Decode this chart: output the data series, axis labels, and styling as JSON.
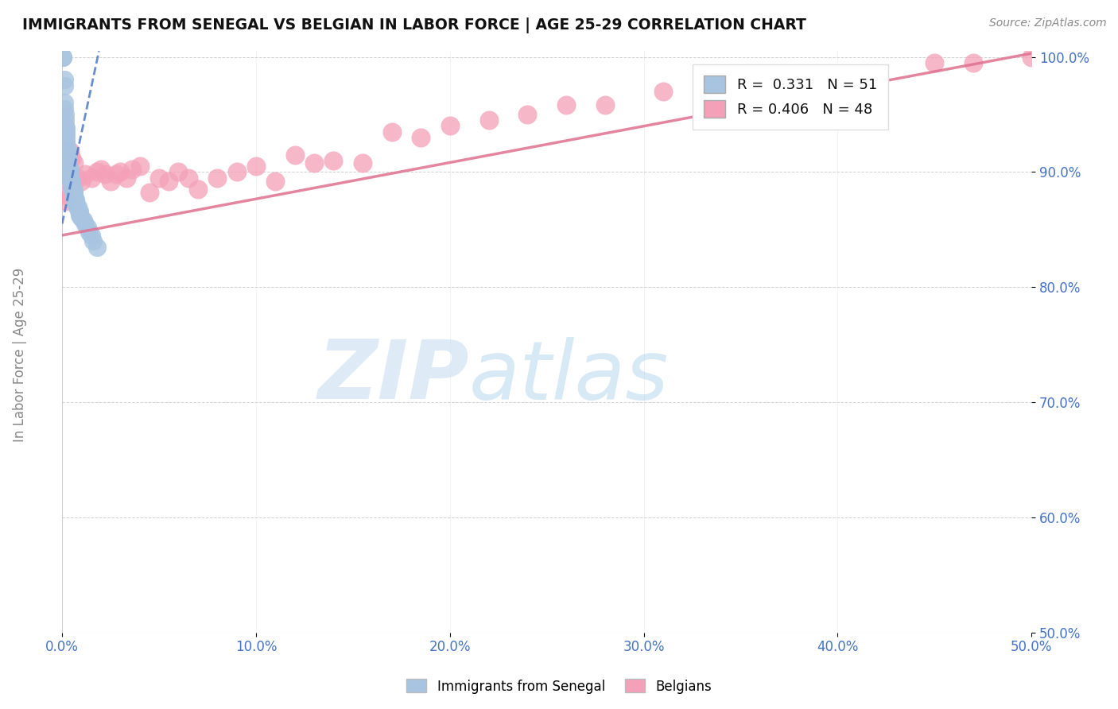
{
  "title": "IMMIGRANTS FROM SENEGAL VS BELGIAN IN LABOR FORCE | AGE 25-29 CORRELATION CHART",
  "source": "Source: ZipAtlas.com",
  "ylabel": "In Labor Force | Age 25-29",
  "xlim": [
    0.0,
    0.5
  ],
  "ylim": [
    0.5,
    1.005
  ],
  "xticks": [
    0.0,
    0.1,
    0.2,
    0.3,
    0.4,
    0.5
  ],
  "xticklabels": [
    "0.0%",
    "10.0%",
    "20.0%",
    "30.0%",
    "40.0%",
    "50.0%"
  ],
  "yticks": [
    0.5,
    0.6,
    0.7,
    0.8,
    0.9,
    1.0
  ],
  "yticklabels": [
    "50.0%",
    "60.0%",
    "70.0%",
    "80.0%",
    "90.0%",
    "100.0%"
  ],
  "senegal_R": 0.331,
  "senegal_N": 51,
  "belgian_R": 0.406,
  "belgian_N": 48,
  "senegal_color": "#a8c4e0",
  "belgian_color": "#f4a0b8",
  "senegal_line_color": "#4472c4",
  "belgian_line_color": "#e07090",
  "background_color": "#ffffff",
  "senegal_x": [
    0.0005,
    0.0005,
    0.001,
    0.001,
    0.001,
    0.001,
    0.0015,
    0.0015,
    0.0015,
    0.002,
    0.002,
    0.002,
    0.002,
    0.002,
    0.002,
    0.003,
    0.003,
    0.003,
    0.003,
    0.003,
    0.003,
    0.003,
    0.004,
    0.004,
    0.004,
    0.004,
    0.004,
    0.005,
    0.005,
    0.005,
    0.005,
    0.006,
    0.006,
    0.006,
    0.006,
    0.007,
    0.007,
    0.007,
    0.008,
    0.008,
    0.009,
    0.009,
    0.009,
    0.01,
    0.011,
    0.012,
    0.013,
    0.014,
    0.015,
    0.016,
    0.018
  ],
  "senegal_y": [
    1.0,
    1.0,
    0.98,
    0.975,
    0.96,
    0.955,
    0.95,
    0.945,
    0.94,
    0.938,
    0.935,
    0.932,
    0.928,
    0.925,
    0.922,
    0.92,
    0.918,
    0.915,
    0.912,
    0.91,
    0.907,
    0.905,
    0.902,
    0.9,
    0.898,
    0.896,
    0.893,
    0.892,
    0.89,
    0.888,
    0.886,
    0.884,
    0.882,
    0.88,
    0.878,
    0.876,
    0.874,
    0.872,
    0.87,
    0.868,
    0.866,
    0.864,
    0.862,
    0.86,
    0.858,
    0.855,
    0.852,
    0.848,
    0.845,
    0.84,
    0.835
  ],
  "belgian_x": [
    0.001,
    0.002,
    0.003,
    0.004,
    0.005,
    0.006,
    0.008,
    0.01,
    0.012,
    0.015,
    0.018,
    0.02,
    0.022,
    0.025,
    0.028,
    0.03,
    0.033,
    0.036,
    0.04,
    0.045,
    0.05,
    0.055,
    0.06,
    0.065,
    0.07,
    0.08,
    0.09,
    0.1,
    0.11,
    0.12,
    0.13,
    0.14,
    0.155,
    0.17,
    0.185,
    0.2,
    0.22,
    0.24,
    0.26,
    0.28,
    0.31,
    0.34,
    0.37,
    0.4,
    0.42,
    0.45,
    0.47,
    0.5
  ],
  "belgian_y": [
    0.88,
    0.875,
    0.91,
    0.918,
    0.912,
    0.908,
    0.895,
    0.892,
    0.898,
    0.895,
    0.9,
    0.902,
    0.898,
    0.892,
    0.898,
    0.9,
    0.895,
    0.902,
    0.905,
    0.882,
    0.895,
    0.892,
    0.9,
    0.895,
    0.885,
    0.895,
    0.9,
    0.905,
    0.892,
    0.915,
    0.908,
    0.91,
    0.908,
    0.935,
    0.93,
    0.94,
    0.945,
    0.95,
    0.958,
    0.958,
    0.97,
    0.975,
    0.982,
    0.975,
    0.958,
    0.995,
    0.995,
    1.0
  ],
  "senegal_trend_x": [
    0.0,
    0.019
  ],
  "senegal_trend_y": [
    0.855,
    1.005
  ],
  "belgian_trend_x": [
    0.0,
    0.5
  ],
  "belgian_trend_y": [
    0.845,
    1.003
  ]
}
